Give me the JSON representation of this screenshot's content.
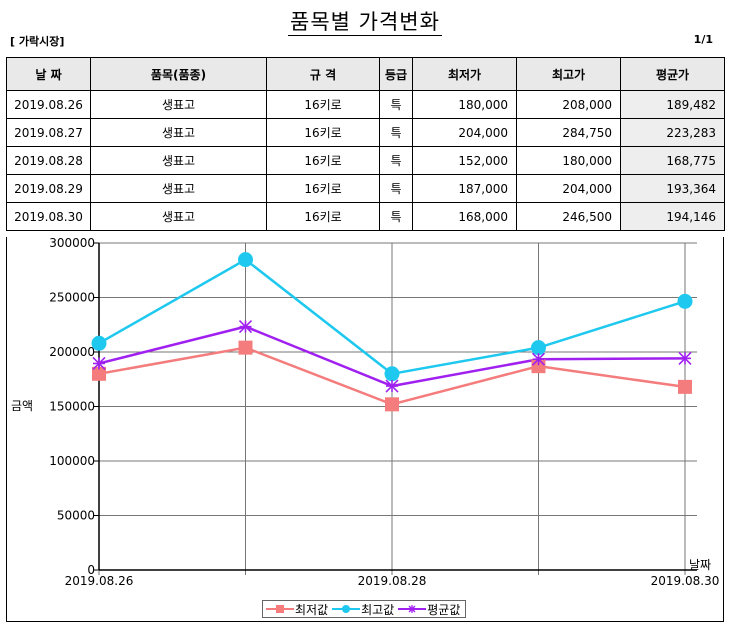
{
  "header": {
    "title": "품목별 가격변화",
    "market": "[ 가락시장]",
    "page": "1/1"
  },
  "table": {
    "columns": [
      "날 짜",
      "품목(품종)",
      "규 격",
      "등급",
      "최저가",
      "최고가",
      "평균가"
    ],
    "rows": [
      {
        "date": "2019.08.26",
        "item": "생표고",
        "spec": "16키로",
        "grade": "특",
        "min": "180,000",
        "max": "208,000",
        "avg": "189,482"
      },
      {
        "date": "2019.08.27",
        "item": "생표고",
        "spec": "16키로",
        "grade": "특",
        "min": "204,000",
        "max": "284,750",
        "avg": "223,283"
      },
      {
        "date": "2019.08.28",
        "item": "생표고",
        "spec": "16키로",
        "grade": "특",
        "min": "152,000",
        "max": "180,000",
        "avg": "168,775"
      },
      {
        "date": "2019.08.29",
        "item": "생표고",
        "spec": "16키로",
        "grade": "특",
        "min": "187,000",
        "max": "204,000",
        "avg": "193,364"
      },
      {
        "date": "2019.08.30",
        "item": "생표고",
        "spec": "16키로",
        "grade": "특",
        "min": "168,000",
        "max": "246,500",
        "avg": "194,146"
      }
    ]
  },
  "chart_data": {
    "type": "line",
    "x": [
      "2019.08.26",
      "2019.08.27",
      "2019.08.28",
      "2019.08.29",
      "2019.08.30"
    ],
    "x_tick_labels": [
      "2019.08.26",
      "",
      "2019.08.28",
      "",
      "2019.08.30"
    ],
    "ylabel": "금액",
    "xlabel": "날짜",
    "ylim": [
      0,
      300000
    ],
    "y_ticks": [
      0,
      50000,
      100000,
      150000,
      200000,
      250000,
      300000
    ],
    "grid": true,
    "legend_position": "bottom",
    "series": [
      {
        "name": "최저값",
        "color": "#f47c7c",
        "marker": "square",
        "values": [
          180000,
          204000,
          152000,
          187000,
          168000
        ]
      },
      {
        "name": "최고값",
        "color": "#1ec8ee",
        "marker": "circle",
        "values": [
          208000,
          284750,
          180000,
          204000,
          246500
        ]
      },
      {
        "name": "평균값",
        "color": "#a020f0",
        "marker": "star",
        "values": [
          189482,
          223283,
          168775,
          193364,
          194146
        ]
      }
    ]
  }
}
